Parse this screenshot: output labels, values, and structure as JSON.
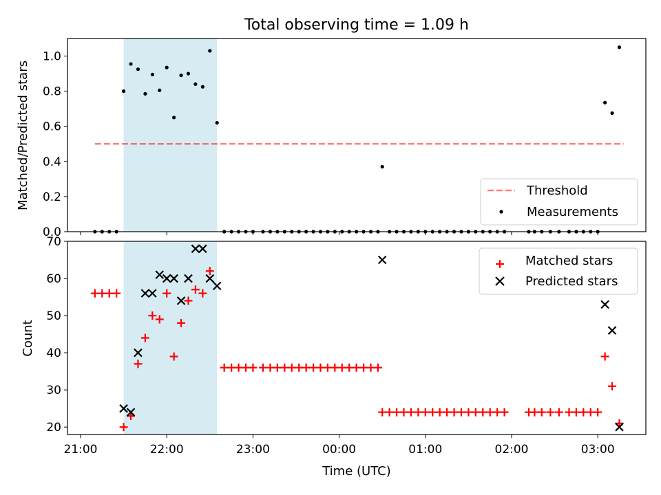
{
  "title": "Total observing time = 1.09 h",
  "colors": {
    "shade": "#add8e6",
    "threshold": "#ff0000",
    "measurement": "#000000",
    "matched": "#ff0000",
    "predicted": "#000000"
  },
  "chart_data": [
    {
      "type": "scatter",
      "name": "ratio-panel",
      "ylabel": "Matched/Predicted stars",
      "ylim": [
        0,
        1.1
      ],
      "yticks": [
        "0.0",
        "0.2",
        "0.4",
        "0.6",
        "0.8",
        "1.0"
      ],
      "shaded_interval": [
        "21:30",
        "22:35"
      ],
      "legend_placement": "lower right",
      "legend": [
        "Threshold",
        "Measurements"
      ],
      "threshold": {
        "value": 0.5,
        "x_range": [
          "21:10",
          "03:18"
        ]
      },
      "measurements": [
        [
          "21:10",
          0
        ],
        [
          "21:15",
          0
        ],
        [
          "21:20",
          0
        ],
        [
          "21:25",
          0
        ],
        [
          "21:30",
          0.8
        ],
        [
          "21:35",
          0.955
        ],
        [
          "21:40",
          0.925
        ],
        [
          "21:45",
          0.785
        ],
        [
          "21:50",
          0.895
        ],
        [
          "21:55",
          0.805
        ],
        [
          "22:00",
          0.935
        ],
        [
          "22:05",
          0.65
        ],
        [
          "22:10",
          0.89
        ],
        [
          "22:15",
          0.9
        ],
        [
          "22:20",
          0.84
        ],
        [
          "22:25",
          0.825
        ],
        [
          "22:30",
          1.03
        ],
        [
          "22:35",
          0.62
        ],
        [
          "22:40",
          0
        ],
        [
          "22:45",
          0
        ],
        [
          "22:50",
          0
        ],
        [
          "22:55",
          0
        ],
        [
          "23:00",
          0
        ],
        [
          "23:07",
          0
        ],
        [
          "23:12",
          0
        ],
        [
          "23:17",
          0
        ],
        [
          "23:22",
          0
        ],
        [
          "23:27",
          0
        ],
        [
          "23:32",
          0
        ],
        [
          "23:37",
          0
        ],
        [
          "23:42",
          0
        ],
        [
          "23:47",
          0
        ],
        [
          "23:52",
          0
        ],
        [
          "23:57",
          0
        ],
        [
          "00:02",
          0
        ],
        [
          "00:07",
          0
        ],
        [
          "00:12",
          0
        ],
        [
          "00:17",
          0
        ],
        [
          "00:22",
          0
        ],
        [
          "00:27",
          0
        ],
        [
          "00:30",
          0.37
        ],
        [
          "00:35",
          0
        ],
        [
          "00:40",
          0
        ],
        [
          "00:45",
          0
        ],
        [
          "00:50",
          0
        ],
        [
          "00:55",
          0
        ],
        [
          "01:00",
          0
        ],
        [
          "01:05",
          0
        ],
        [
          "01:10",
          0
        ],
        [
          "01:15",
          0
        ],
        [
          "01:20",
          0
        ],
        [
          "01:25",
          0
        ],
        [
          "01:30",
          0
        ],
        [
          "01:35",
          0
        ],
        [
          "01:40",
          0
        ],
        [
          "01:45",
          0
        ],
        [
          "01:50",
          0
        ],
        [
          "01:55",
          0
        ],
        [
          "02:12",
          0
        ],
        [
          "02:16",
          0
        ],
        [
          "02:21",
          0
        ],
        [
          "02:27",
          0
        ],
        [
          "02:33",
          0
        ],
        [
          "02:40",
          0
        ],
        [
          "02:45",
          0
        ],
        [
          "02:50",
          0
        ],
        [
          "02:55",
          0
        ],
        [
          "03:00",
          0
        ],
        [
          "03:05",
          0.735
        ],
        [
          "03:10",
          0.675
        ],
        [
          "03:15",
          1.05
        ]
      ]
    },
    {
      "type": "scatter",
      "name": "count-panel",
      "xlabel": "Time (UTC)",
      "ylabel": "Count",
      "ylim": [
        18,
        70
      ],
      "yticks": [
        "20",
        "30",
        "40",
        "50",
        "60",
        "70"
      ],
      "xticks": [
        "21:00",
        "22:00",
        "23:00",
        "00:00",
        "01:00",
        "02:00",
        "03:00"
      ],
      "shaded_interval": [
        "21:30",
        "22:35"
      ],
      "legend_placement": "upper right",
      "series": [
        {
          "name": "Matched stars",
          "marker": "plus",
          "points": [
            [
              "21:10",
              56
            ],
            [
              "21:15",
              56
            ],
            [
              "21:20",
              56
            ],
            [
              "21:25",
              56
            ],
            [
              "21:30",
              20
            ],
            [
              "21:35",
              23
            ],
            [
              "21:40",
              37
            ],
            [
              "21:45",
              44
            ],
            [
              "21:50",
              50
            ],
            [
              "21:55",
              49
            ],
            [
              "22:00",
              56
            ],
            [
              "22:05",
              39
            ],
            [
              "22:10",
              48
            ],
            [
              "22:15",
              54
            ],
            [
              "22:20",
              57
            ],
            [
              "22:25",
              56
            ],
            [
              "22:30",
              62
            ],
            [
              "22:40",
              36
            ],
            [
              "22:45",
              36
            ],
            [
              "22:50",
              36
            ],
            [
              "22:55",
              36
            ],
            [
              "23:00",
              36
            ],
            [
              "23:07",
              36
            ],
            [
              "23:12",
              36
            ],
            [
              "23:17",
              36
            ],
            [
              "23:22",
              36
            ],
            [
              "23:27",
              36
            ],
            [
              "23:32",
              36
            ],
            [
              "23:37",
              36
            ],
            [
              "23:42",
              36
            ],
            [
              "23:47",
              36
            ],
            [
              "23:52",
              36
            ],
            [
              "23:57",
              36
            ],
            [
              "00:02",
              36
            ],
            [
              "00:07",
              36
            ],
            [
              "00:12",
              36
            ],
            [
              "00:17",
              36
            ],
            [
              "00:22",
              36
            ],
            [
              "00:27",
              36
            ],
            [
              "00:30",
              24
            ],
            [
              "00:35",
              24
            ],
            [
              "00:40",
              24
            ],
            [
              "00:45",
              24
            ],
            [
              "00:50",
              24
            ],
            [
              "00:55",
              24
            ],
            [
              "01:00",
              24
            ],
            [
              "01:05",
              24
            ],
            [
              "01:10",
              24
            ],
            [
              "01:15",
              24
            ],
            [
              "01:20",
              24
            ],
            [
              "01:25",
              24
            ],
            [
              "01:30",
              24
            ],
            [
              "01:35",
              24
            ],
            [
              "01:40",
              24
            ],
            [
              "01:45",
              24
            ],
            [
              "01:50",
              24
            ],
            [
              "01:55",
              24
            ],
            [
              "02:12",
              24
            ],
            [
              "02:16",
              24
            ],
            [
              "02:21",
              24
            ],
            [
              "02:27",
              24
            ],
            [
              "02:33",
              24
            ],
            [
              "02:40",
              24
            ],
            [
              "02:45",
              24
            ],
            [
              "02:50",
              24
            ],
            [
              "02:55",
              24
            ],
            [
              "03:00",
              24
            ],
            [
              "03:05",
              39
            ],
            [
              "03:10",
              31
            ],
            [
              "03:15",
              21
            ]
          ]
        },
        {
          "name": "Predicted stars",
          "marker": "x",
          "points": [
            [
              "21:30",
              25
            ],
            [
              "21:35",
              24
            ],
            [
              "21:40",
              40
            ],
            [
              "21:45",
              56
            ],
            [
              "21:50",
              56
            ],
            [
              "21:55",
              61
            ],
            [
              "22:00",
              60
            ],
            [
              "22:05",
              60
            ],
            [
              "22:10",
              54
            ],
            [
              "22:15",
              60
            ],
            [
              "22:20",
              68
            ],
            [
              "22:25",
              68
            ],
            [
              "22:30",
              60
            ],
            [
              "22:35",
              58
            ],
            [
              "00:30",
              65
            ],
            [
              "03:05",
              53
            ],
            [
              "03:10",
              46
            ],
            [
              "03:15",
              20
            ]
          ]
        }
      ]
    }
  ]
}
